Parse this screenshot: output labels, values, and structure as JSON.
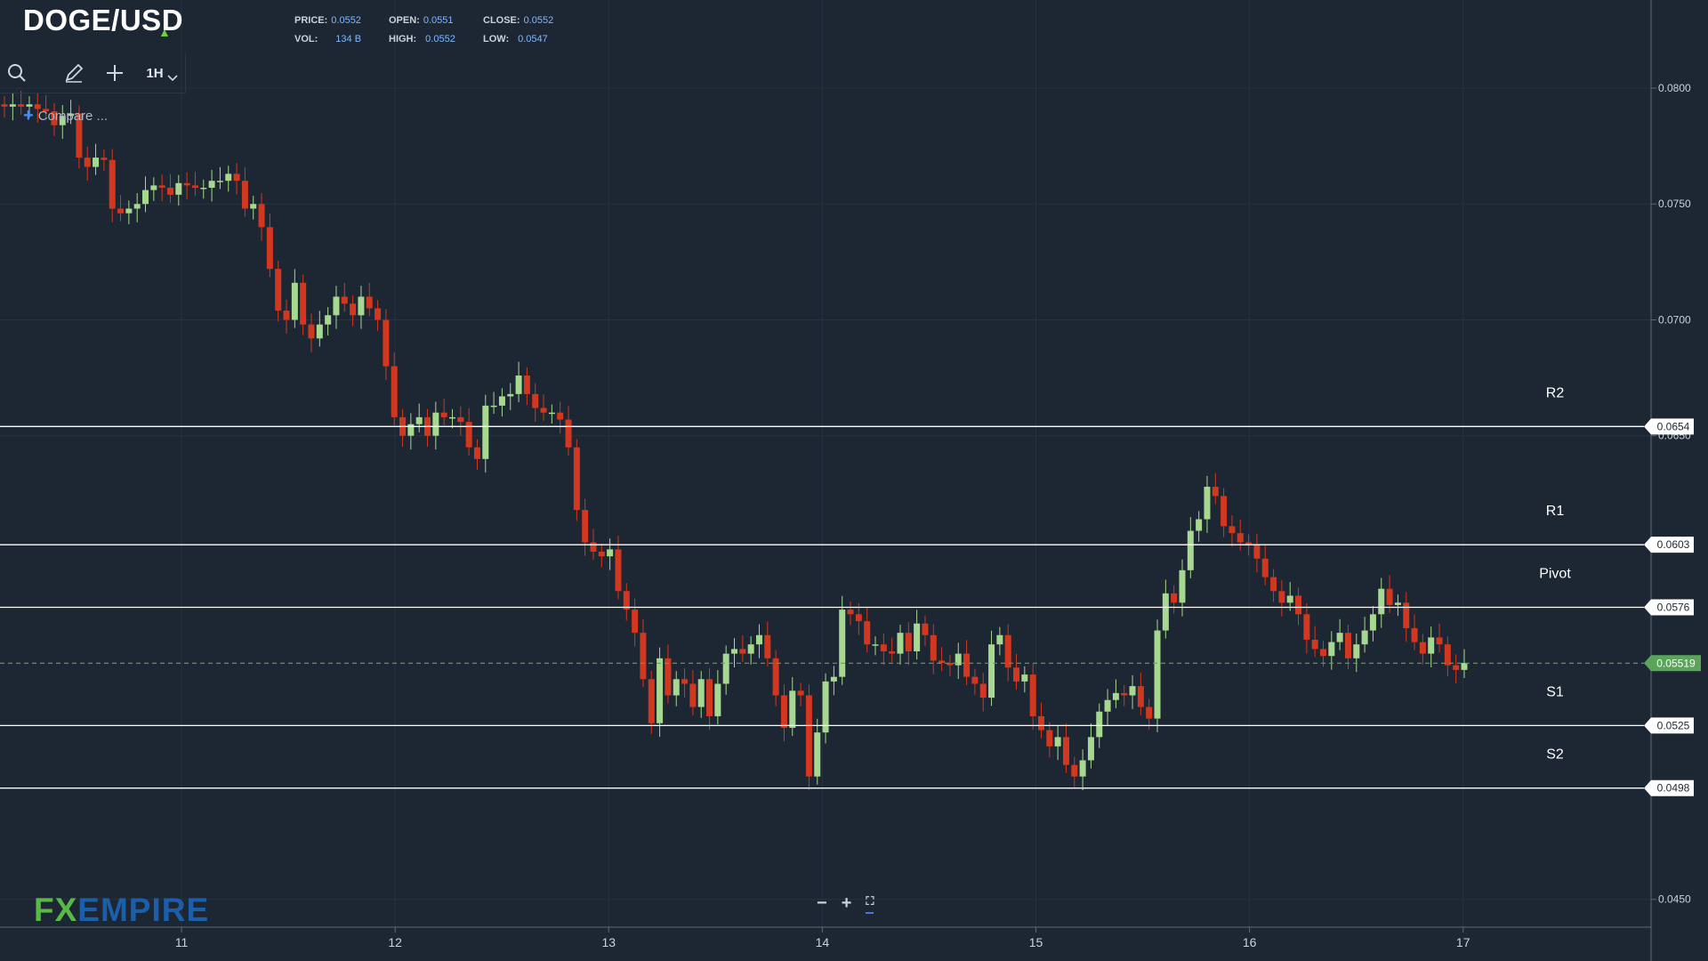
{
  "header": {
    "symbol": "DOGE/USD",
    "direction": "up",
    "price_label": "PRICE:",
    "price": "0.0552",
    "open_label": "OPEN:",
    "open": "0.0551",
    "close_label": "CLOSE:",
    "close": "0.0552",
    "vol_label": "VOL:",
    "vol": "134 B",
    "high_label": "HIGH:",
    "high": "0.0552",
    "low_label": "LOW:",
    "low": "0.0547"
  },
  "toolbar": {
    "search_icon": "search-icon",
    "draw_icon": "pencil-icon",
    "crosshair_icon": "plus-icon",
    "timeframe": "1H",
    "timeframe_icon": "chevron-down-icon",
    "compare_label": "Compare ..."
  },
  "zoom": {
    "minus": "−",
    "plus": "+",
    "fullscreen": "⛶"
  },
  "branding": {
    "logo_fx": "FX",
    "logo_empire": "EMPIRE"
  },
  "colors": {
    "background": "#1d2733",
    "grid": "#27323f",
    "up": "#a6d88f",
    "down": "#d2371f",
    "level_line": "#ffffff",
    "current_price": "#5aa55a",
    "logo_fx": "#58b947",
    "logo_empire": "#1b5eaa"
  },
  "chart_data": {
    "type": "candlestick",
    "ylim": [
      0.0438,
      0.0838
    ],
    "yticks": [
      "0.0800",
      "0.0750",
      "0.0700",
      "0.0650",
      "0.0450"
    ],
    "xticks": [
      "11",
      "12",
      "13",
      "14",
      "15",
      "16",
      "17"
    ],
    "xtick_values": [
      11,
      12,
      13,
      14,
      15,
      16,
      17
    ],
    "xlim": [
      10.15,
      17.88
    ],
    "grid": true,
    "levels": [
      {
        "name": "R2",
        "value": 0.0654,
        "label": "0.0654"
      },
      {
        "name": "R1",
        "value": 0.0603,
        "label": "0.0603"
      },
      {
        "name": "Pivot",
        "value": 0.0576,
        "label": "0.0576"
      },
      {
        "name": "S1",
        "value": 0.0525,
        "label": "0.0525"
      },
      {
        "name": "S2",
        "value": 0.0498,
        "label": "0.0498"
      }
    ],
    "current_price": {
      "value": 0.05519,
      "label": "0.05519"
    },
    "ohlc_close": [
      0.0792,
      0.0793,
      0.0792,
      0.0793,
      0.0791,
      0.079,
      0.0784,
      0.0788,
      0.0789,
      0.077,
      0.0766,
      0.077,
      0.0769,
      0.0748,
      0.0746,
      0.0748,
      0.075,
      0.0756,
      0.0758,
      0.0757,
      0.0754,
      0.0759,
      0.0758,
      0.0757,
      0.0757,
      0.076,
      0.076,
      0.0763,
      0.076,
      0.0748,
      0.075,
      0.074,
      0.0722,
      0.0704,
      0.07,
      0.0716,
      0.0698,
      0.0692,
      0.0698,
      0.0702,
      0.071,
      0.0707,
      0.0702,
      0.071,
      0.0705,
      0.07,
      0.068,
      0.0658,
      0.065,
      0.0655,
      0.0658,
      0.065,
      0.066,
      0.0658,
      0.0658,
      0.0656,
      0.0645,
      0.064,
      0.0663,
      0.0663,
      0.0667,
      0.0668,
      0.0676,
      0.0668,
      0.0662,
      0.066,
      0.066,
      0.0657,
      0.0645,
      0.0618,
      0.0604,
      0.06,
      0.0598,
      0.0601,
      0.0583,
      0.0575,
      0.0565,
      0.0545,
      0.0526,
      0.0554,
      0.0538,
      0.0545,
      0.0543,
      0.0533,
      0.0545,
      0.0529,
      0.0543,
      0.0556,
      0.0558,
      0.0556,
      0.056,
      0.0564,
      0.0554,
      0.0538,
      0.0524,
      0.054,
      0.0538,
      0.0503,
      0.0522,
      0.0544,
      0.0546,
      0.0575,
      0.0573,
      0.057,
      0.056,
      0.056,
      0.0557,
      0.0556,
      0.0565,
      0.0557,
      0.0569,
      0.0564,
      0.0553,
      0.0552,
      0.0551,
      0.0556,
      0.0546,
      0.0543,
      0.0537,
      0.056,
      0.0564,
      0.055,
      0.0544,
      0.0547,
      0.0529,
      0.0523,
      0.0516,
      0.052,
      0.0508,
      0.0503,
      0.051,
      0.052,
      0.0531,
      0.0536,
      0.0539,
      0.0538,
      0.0542,
      0.0533,
      0.0528,
      0.0566,
      0.0582,
      0.0578,
      0.0592,
      0.0609,
      0.0614,
      0.0628,
      0.0624,
      0.0611,
      0.0608,
      0.0604,
      0.0603,
      0.0597,
      0.0589,
      0.0583,
      0.0578,
      0.0581,
      0.0573,
      0.0562,
      0.0558,
      0.0555,
      0.0561,
      0.0565,
      0.0554,
      0.056,
      0.0566,
      0.0573,
      0.0584,
      0.0577,
      0.0578,
      0.0567,
      0.0561,
      0.0556,
      0.0563,
      0.056,
      0.0551,
      0.0549,
      0.0552
    ]
  }
}
